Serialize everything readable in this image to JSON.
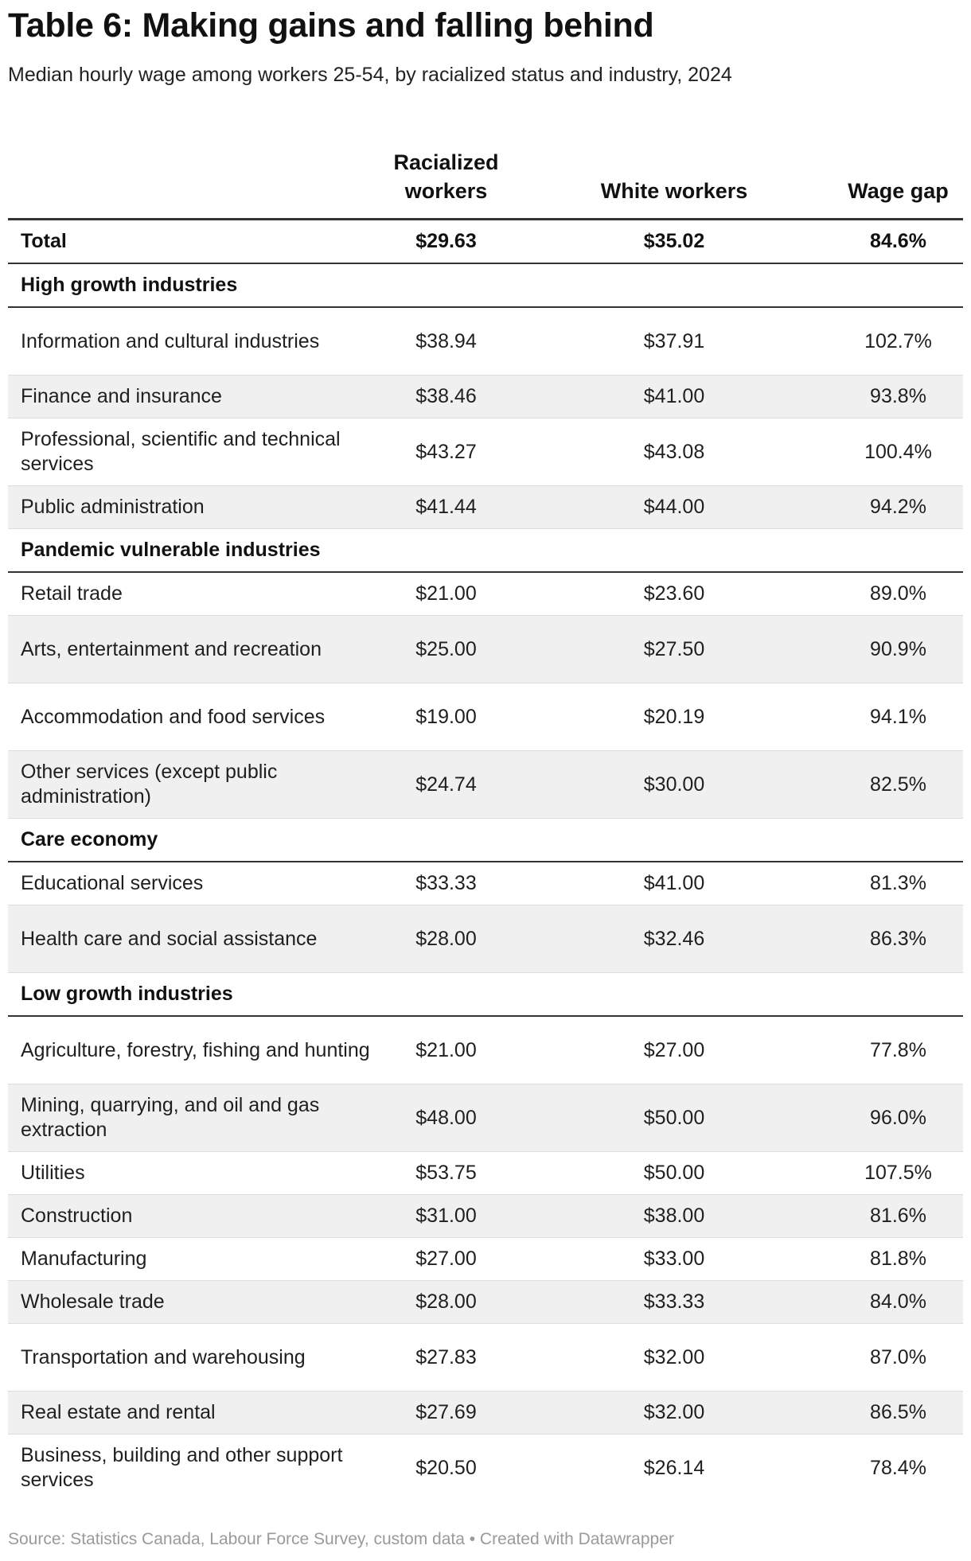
{
  "chart_data": {
    "type": "table",
    "title": "Table 6: Making gains and falling behind",
    "subtitle": "Median hourly wage among workers 25-54, by racialized status and industry, 2024",
    "columns": [
      "",
      "Racialized workers",
      "White workers",
      "Wage gap"
    ],
    "total": {
      "label": "Total",
      "racialized": "$29.63",
      "white": "$35.02",
      "gap": "84.6%"
    },
    "sections": [
      {
        "name": "High growth industries",
        "rows": [
          {
            "label": "Information and cultural industries",
            "racialized": "$38.94",
            "white": "$37.91",
            "gap": "102.7%"
          },
          {
            "label": "Finance and insurance",
            "racialized": "$38.46",
            "white": "$41.00",
            "gap": "93.8%"
          },
          {
            "label": "Professional, scientific and technical services",
            "racialized": "$43.27",
            "white": "$43.08",
            "gap": "100.4%"
          },
          {
            "label": "Public administration",
            "racialized": "$41.44",
            "white": "$44.00",
            "gap": "94.2%"
          }
        ]
      },
      {
        "name": "Pandemic vulnerable industries",
        "rows": [
          {
            "label": "Retail trade",
            "racialized": "$21.00",
            "white": "$23.60",
            "gap": "89.0%"
          },
          {
            "label": "Arts, entertainment and recreation",
            "racialized": "$25.00",
            "white": "$27.50",
            "gap": "90.9%"
          },
          {
            "label": "Accommodation and food services",
            "racialized": "$19.00",
            "white": "$20.19",
            "gap": "94.1%"
          },
          {
            "label": "Other services (except public administration)",
            "racialized": "$24.74",
            "white": "$30.00",
            "gap": "82.5%"
          }
        ]
      },
      {
        "name": "Care economy",
        "rows": [
          {
            "label": "Educational services",
            "racialized": "$33.33",
            "white": "$41.00",
            "gap": "81.3%"
          },
          {
            "label": "Health care and social assistance",
            "racialized": "$28.00",
            "white": "$32.46",
            "gap": "86.3%"
          }
        ]
      },
      {
        "name": "Low growth industries",
        "rows": [
          {
            "label": "Agriculture, forestry, fishing and hunting",
            "racialized": "$21.00",
            "white": "$27.00",
            "gap": "77.8%"
          },
          {
            "label": "Mining, quarrying, and oil and gas extraction",
            "racialized": "$48.00",
            "white": "$50.00",
            "gap": "96.0%"
          },
          {
            "label": "Utilities",
            "racialized": "$53.75",
            "white": "$50.00",
            "gap": "107.5%"
          },
          {
            "label": "Construction",
            "racialized": "$31.00",
            "white": "$38.00",
            "gap": "81.6%"
          },
          {
            "label": "Manufacturing",
            "racialized": "$27.00",
            "white": "$33.00",
            "gap": "81.8%"
          },
          {
            "label": "Wholesale trade",
            "racialized": "$28.00",
            "white": "$33.33",
            "gap": "84.0%"
          },
          {
            "label": "Transportation and warehousing",
            "racialized": "$27.83",
            "white": "$32.00",
            "gap": "87.0%"
          },
          {
            "label": "Real estate and rental",
            "racialized": "$27.69",
            "white": "$32.00",
            "gap": "86.5%"
          },
          {
            "label": "Business, building and other support services",
            "racialized": "$20.50",
            "white": "$26.14",
            "gap": "78.4%"
          }
        ]
      }
    ],
    "source": "Source: Statistics Canada, Labour Force Survey, custom data • Created with Datawrapper",
    "colors": {
      "shade": "#f0f0f0",
      "rule": "#333333",
      "divider": "#dddddd",
      "source_text": "#9a9a9a"
    }
  }
}
